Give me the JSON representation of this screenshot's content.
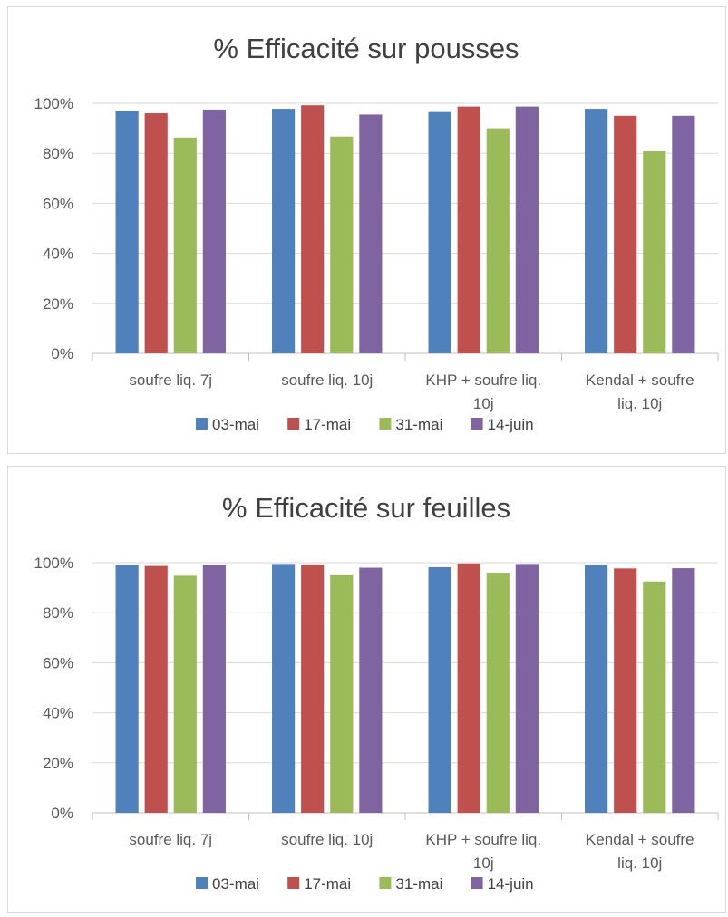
{
  "chart_data": [
    {
      "type": "bar",
      "title": "% Efficacité sur pousses",
      "categories": [
        [
          "soufre liq. 7j"
        ],
        [
          "soufre liq. 10j"
        ],
        [
          "KHP + soufre liq.",
          "10j"
        ],
        [
          "Kendal + soufre",
          "liq. 10j"
        ]
      ],
      "series": [
        {
          "name": "03-mai",
          "color": "#4f81bd",
          "values": [
            97,
            97.8,
            96.5,
            97.8
          ]
        },
        {
          "name": "17-mai",
          "color": "#c0504d",
          "values": [
            96,
            99.2,
            98.7,
            95
          ]
        },
        {
          "name": "31-mai",
          "color": "#9bbb59",
          "values": [
            86.3,
            86.7,
            90,
            80.8
          ]
        },
        {
          "name": "14-juin",
          "color": "#8064a2",
          "values": [
            97.5,
            95.5,
            98.7,
            95
          ]
        }
      ],
      "ylim": [
        0,
        100
      ],
      "yticks": [
        "0%",
        "20%",
        "40%",
        "60%",
        "80%",
        "100%"
      ],
      "grid": true,
      "legend": "bottom"
    },
    {
      "type": "bar",
      "title": "% Efficacité sur feuilles",
      "categories": [
        [
          "soufre liq. 7j"
        ],
        [
          "soufre liq. 10j"
        ],
        [
          "KHP + soufre liq.",
          "10j"
        ],
        [
          "Kendal + soufre",
          "liq. 10j"
        ]
      ],
      "series": [
        {
          "name": "03-mai",
          "color": "#4f81bd",
          "values": [
            99,
            99.5,
            98.2,
            99
          ]
        },
        {
          "name": "17-mai",
          "color": "#c0504d",
          "values": [
            98.7,
            99.2,
            99.7,
            97.7
          ]
        },
        {
          "name": "31-mai",
          "color": "#9bbb59",
          "values": [
            94.8,
            95,
            96,
            92.5
          ]
        },
        {
          "name": "14-juin",
          "color": "#8064a2",
          "values": [
            99,
            98,
            99.5,
            97.8
          ]
        }
      ],
      "ylim": [
        0,
        100
      ],
      "yticks": [
        "0%",
        "20%",
        "40%",
        "60%",
        "80%",
        "100%"
      ],
      "grid": true,
      "legend": "bottom"
    }
  ]
}
